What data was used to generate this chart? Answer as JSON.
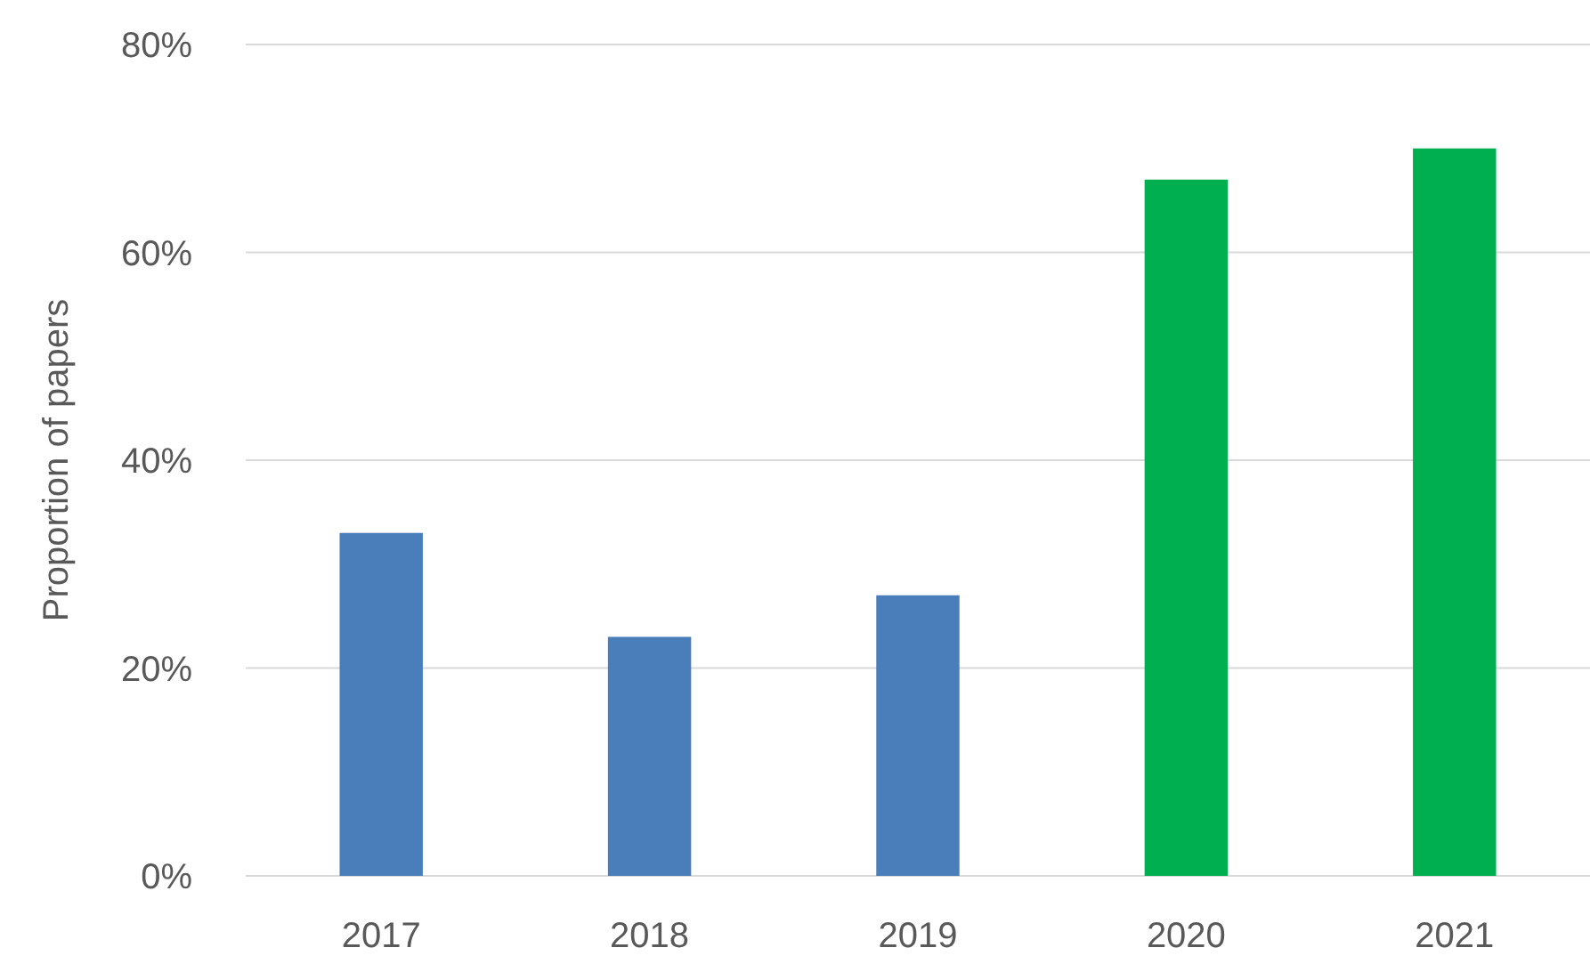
{
  "chart_data": {
    "type": "bar",
    "ylabel": "Proportion of papers",
    "categories": [
      "2017",
      "2018",
      "2019",
      "2020",
      "2021"
    ],
    "values": [
      33,
      23,
      27,
      67,
      70
    ],
    "colors": [
      "#4a7ebb",
      "#4a7ebb",
      "#4a7ebb",
      "#00b050",
      "#00b050"
    ],
    "ylim": [
      0,
      80
    ],
    "yticks": [
      {
        "value": 0,
        "label": "0%"
      },
      {
        "value": 20,
        "label": "20%"
      },
      {
        "value": 40,
        "label": "40%"
      },
      {
        "value": 60,
        "label": "60%"
      },
      {
        "value": 80,
        "label": "80%"
      }
    ],
    "grid": "y"
  }
}
